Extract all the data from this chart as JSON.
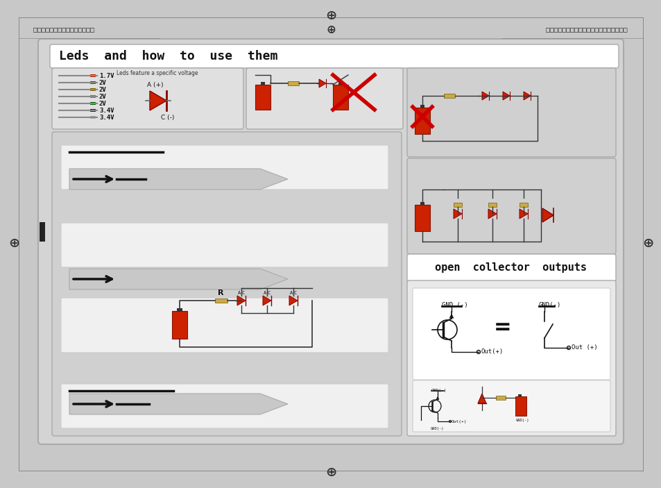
{
  "page_bg": "#c8c8c8",
  "main_box_bg": "#d4d4d4",
  "title_text": "Leds  and  how  to  use  them",
  "title_font_size": 13,
  "subtitle_text": "open  collector  outputs",
  "subtitle_font_size": 11,
  "red_color": "#cc2200",
  "dark_color": "#1a1a1a",
  "led_colors": [
    "#cc2200",
    "#884400",
    "#886600",
    "#888800",
    "#006600",
    "#002299",
    "#aaaaaa"
  ],
  "led_voltages": [
    "1.7V",
    "2V",
    "2V",
    "2V",
    "2V",
    "3.4V",
    "3.4V"
  ],
  "led_y_positions": [
    594,
    584,
    574,
    564,
    554,
    544,
    534
  ]
}
